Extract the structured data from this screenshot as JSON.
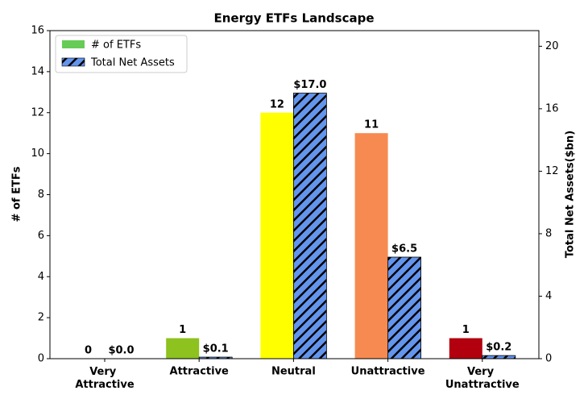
{
  "chart_data": {
    "type": "bar",
    "title": "Energy ETFs Landscape",
    "categories": [
      "Very Attractive",
      "Attractive",
      "Neutral",
      "Unattractive",
      "Very Unattractive"
    ],
    "ylabel": "# of ETFs",
    "y2label": "Total Net Assets($bn)",
    "ylim": [
      0,
      16
    ],
    "yticks": [
      0,
      2,
      4,
      6,
      8,
      10,
      12,
      14,
      16
    ],
    "y2lim": [
      0,
      21
    ],
    "y2ticks": [
      0,
      4,
      8,
      12,
      16,
      20
    ],
    "legend": "upper left",
    "series": [
      {
        "name": "# of ETFs",
        "color": "#66cc55",
        "colors": [
          "#8dc21f",
          "#8dc21f",
          "#ffff00",
          "#f78a50",
          "#b2000f"
        ],
        "values": [
          0,
          1,
          12,
          11,
          1
        ]
      },
      {
        "name": "Total Net Assets",
        "color": "#6495ed",
        "hatch": true,
        "axis": "y2",
        "values": [
          0.0,
          0.1,
          17.0,
          6.5,
          0.2
        ],
        "value_labels": [
          "$0.0",
          "$0.1",
          "$17.0",
          "$6.5",
          "$0.2"
        ]
      }
    ]
  }
}
